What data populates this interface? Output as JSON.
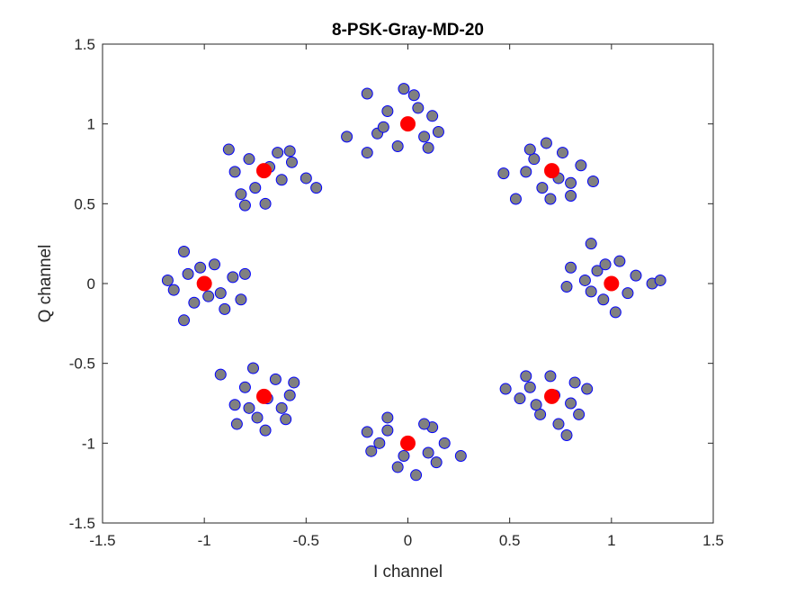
{
  "chart_data": {
    "type": "scatter",
    "title": "8-PSK-Gray-MD-20",
    "xlabel": "I channel",
    "ylabel": "Q channel",
    "xlim": [
      -1.5,
      1.5
    ],
    "ylim": [
      -1.5,
      1.5
    ],
    "xticks": [
      -1.5,
      -1,
      -0.5,
      0,
      0.5,
      1,
      1.5
    ],
    "yticks": [
      -1.5,
      -1,
      -0.5,
      0,
      0.5,
      1,
      1.5
    ],
    "xtick_labels": [
      "-1.5",
      "-1",
      "-0.5",
      "0",
      "0.5",
      "1",
      "1.5"
    ],
    "ytick_labels": [
      "-1.5",
      "-1",
      "-0.5",
      "0",
      "0.5",
      "1",
      "1.5"
    ],
    "grid": false,
    "colors": {
      "received_fill": "#808080",
      "received_edge": "#0000ff",
      "reference_fill": "#ff0000"
    },
    "series": [
      {
        "marker": "circle",
        "points": [
          [
            1.0,
            0.0
          ],
          [
            0.93,
            0.08
          ],
          [
            1.08,
            -0.06
          ],
          [
            0.96,
            -0.1
          ],
          [
            1.12,
            0.05
          ],
          [
            0.87,
            0.02
          ],
          [
            1.04,
            0.14
          ],
          [
            0.9,
            -0.05
          ],
          [
            1.2,
            0.0
          ],
          [
            0.8,
            0.1
          ],
          [
            1.24,
            0.02
          ],
          [
            0.78,
            -0.02
          ],
          [
            0.9,
            0.25
          ],
          [
            1.02,
            -0.18
          ],
          [
            0.97,
            0.12
          ],
          [
            0.707,
            0.707
          ],
          [
            0.62,
            0.78
          ],
          [
            0.8,
            0.63
          ],
          [
            0.66,
            0.6
          ],
          [
            0.76,
            0.82
          ],
          [
            0.58,
            0.7
          ],
          [
            0.85,
            0.74
          ],
          [
            0.7,
            0.53
          ],
          [
            0.47,
            0.69
          ],
          [
            0.91,
            0.64
          ],
          [
            0.68,
            0.88
          ],
          [
            0.53,
            0.53
          ],
          [
            0.74,
            0.66
          ],
          [
            0.6,
            0.84
          ],
          [
            0.8,
            0.55
          ],
          [
            0.0,
            1.0
          ],
          [
            -0.1,
            1.08
          ],
          [
            0.08,
            0.92
          ],
          [
            -0.15,
            0.94
          ],
          [
            0.12,
            1.05
          ],
          [
            -0.05,
            0.86
          ],
          [
            0.03,
            1.18
          ],
          [
            0.15,
            0.95
          ],
          [
            -0.2,
            1.19
          ],
          [
            -0.3,
            0.92
          ],
          [
            -0.2,
            0.82
          ],
          [
            0.05,
            1.1
          ],
          [
            -0.12,
            0.98
          ],
          [
            0.1,
            0.85
          ],
          [
            -0.02,
            1.22
          ],
          [
            -0.707,
            0.707
          ],
          [
            -0.78,
            0.78
          ],
          [
            -0.62,
            0.65
          ],
          [
            -0.75,
            0.6
          ],
          [
            -0.64,
            0.82
          ],
          [
            -0.85,
            0.7
          ],
          [
            -0.57,
            0.76
          ],
          [
            -0.7,
            0.5
          ],
          [
            -0.8,
            0.49
          ],
          [
            -0.5,
            0.66
          ],
          [
            -0.45,
            0.6
          ],
          [
            -0.88,
            0.84
          ],
          [
            -0.68,
            0.73
          ],
          [
            -0.58,
            0.83
          ],
          [
            -0.82,
            0.56
          ],
          [
            -1.0,
            0.0
          ],
          [
            -1.08,
            0.06
          ],
          [
            -0.92,
            -0.06
          ],
          [
            -1.05,
            -0.12
          ],
          [
            -0.95,
            0.12
          ],
          [
            -1.15,
            -0.04
          ],
          [
            -0.86,
            0.04
          ],
          [
            -1.1,
            0.2
          ],
          [
            -0.8,
            0.06
          ],
          [
            -1.1,
            -0.23
          ],
          [
            -0.82,
            -0.1
          ],
          [
            -1.18,
            0.02
          ],
          [
            -0.98,
            -0.08
          ],
          [
            -1.02,
            0.1
          ],
          [
            -0.9,
            -0.16
          ],
          [
            -0.707,
            -0.707
          ],
          [
            -0.8,
            -0.65
          ],
          [
            -0.62,
            -0.78
          ],
          [
            -0.74,
            -0.84
          ],
          [
            -0.65,
            -0.6
          ],
          [
            -0.85,
            -0.76
          ],
          [
            -0.58,
            -0.7
          ],
          [
            -0.92,
            -0.57
          ],
          [
            -0.76,
            -0.53
          ],
          [
            -0.7,
            -0.92
          ],
          [
            -0.6,
            -0.85
          ],
          [
            -0.84,
            -0.88
          ],
          [
            -0.69,
            -0.72
          ],
          [
            -0.56,
            -0.62
          ],
          [
            -0.78,
            -0.78
          ],
          [
            0.0,
            -1.0
          ],
          [
            -0.1,
            -0.92
          ],
          [
            0.1,
            -1.06
          ],
          [
            -0.05,
            -1.15
          ],
          [
            0.12,
            -0.9
          ],
          [
            -0.18,
            -1.05
          ],
          [
            0.04,
            -1.2
          ],
          [
            0.18,
            -1.0
          ],
          [
            -0.2,
            -0.93
          ],
          [
            0.26,
            -1.08
          ],
          [
            -0.1,
            -0.84
          ],
          [
            0.08,
            -0.88
          ],
          [
            -0.02,
            -1.08
          ],
          [
            0.14,
            -1.12
          ],
          [
            -0.14,
            -1.0
          ],
          [
            0.707,
            -0.707
          ],
          [
            0.6,
            -0.65
          ],
          [
            0.8,
            -0.75
          ],
          [
            0.7,
            -0.58
          ],
          [
            0.65,
            -0.82
          ],
          [
            0.82,
            -0.62
          ],
          [
            0.55,
            -0.72
          ],
          [
            0.74,
            -0.88
          ],
          [
            0.88,
            -0.66
          ],
          [
            0.48,
            -0.66
          ],
          [
            0.78,
            -0.95
          ],
          [
            0.58,
            -0.58
          ],
          [
            0.72,
            -0.7
          ],
          [
            0.84,
            -0.82
          ],
          [
            0.63,
            -0.76
          ]
        ]
      },
      {
        "marker": "circle",
        "points": [
          [
            1.0,
            0.0
          ],
          [
            0.707,
            0.707
          ],
          [
            0.0,
            1.0
          ],
          [
            -0.707,
            0.707
          ],
          [
            -1.0,
            0.0
          ],
          [
            -0.707,
            -0.707
          ],
          [
            0.0,
            -1.0
          ],
          [
            0.707,
            -0.707
          ]
        ]
      }
    ]
  }
}
